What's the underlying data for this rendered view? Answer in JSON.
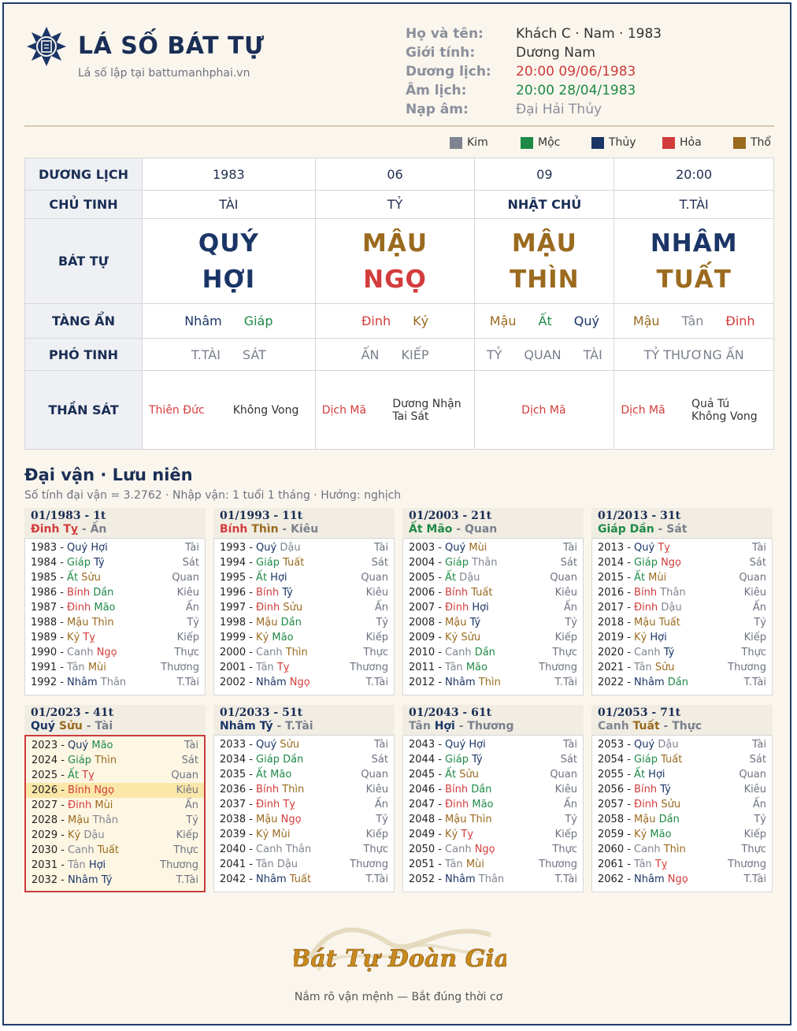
{
  "header": {
    "title": "LÁ SỐ BÁT TỰ",
    "subtitle": "Lá số lập tại battumanhphai.vn",
    "info": [
      {
        "key": "Họ và tên:",
        "value": "Khách C · Nam · 1983",
        "color": "#333333"
      },
      {
        "key": "Giới tính:",
        "value": "Dương Nam",
        "color": "#333333"
      },
      {
        "key": "Dương lịch:",
        "value": "20:00 09/06/1983",
        "color": "#cc3b3b"
      },
      {
        "key": "Âm lịch:",
        "value": "20:00 28/04/1983",
        "color": "#1e8a46"
      },
      {
        "key": "Nạp âm:",
        "value": "Đại Hải Thủy",
        "color": "#8a8f9c"
      }
    ]
  },
  "legend": [
    {
      "label": "Kim",
      "color": "#7f8590"
    },
    {
      "label": "Mộc",
      "color": "#1e8a46"
    },
    {
      "label": "Thủy",
      "color": "#1a3566"
    },
    {
      "label": "Hỏa",
      "color": "#d23c3c"
    },
    {
      "label": "Thổ",
      "color": "#9a6a1e"
    }
  ],
  "colors": {
    "kim": "#7f8590",
    "moc": "#1e8a46",
    "thuy": "#1a3566",
    "hoa": "#d23c3c",
    "tho": "#9a6a1e"
  },
  "table": {
    "labels": {
      "duong_lich": "DƯƠNG LỊCH",
      "chu_tinh": "CHỦ TINH",
      "bat_tu": "BÁT TỰ",
      "tang_an": "TÀNG ẨN",
      "pho_tinh": "PHÓ TINH",
      "than_sat": "THẦN SÁT"
    },
    "duong_lich": [
      "1983",
      "06",
      "09",
      "20:00"
    ],
    "chu_tinh": [
      "TÀI",
      "TỶ",
      "NHẬT CHỦ",
      "T.TÀI"
    ],
    "bat_tu": [
      {
        "can": "QUÝ",
        "can_el": "thuy",
        "chi": "HỢI",
        "chi_el": "thuy"
      },
      {
        "can": "MẬU",
        "can_el": "tho",
        "chi": "NGỌ",
        "chi_el": "hoa"
      },
      {
        "can": "MẬU",
        "can_el": "tho",
        "chi": "THÌN",
        "chi_el": "tho"
      },
      {
        "can": "NHÂM",
        "can_el": "thuy",
        "chi": "TUẤT",
        "chi_el": "tho"
      }
    ],
    "tang_an": [
      [
        {
          "t": "Nhâm",
          "el": "thuy"
        },
        {
          "t": "Giáp",
          "el": "moc"
        }
      ],
      [
        {
          "t": "Đinh",
          "el": "hoa"
        },
        {
          "t": "Kỷ",
          "el": "tho"
        }
      ],
      [
        {
          "t": "Mậu",
          "el": "tho"
        },
        {
          "t": "Ất",
          "el": "moc"
        },
        {
          "t": "Quý",
          "el": "thuy"
        }
      ],
      [
        {
          "t": "Mậu",
          "el": "tho"
        },
        {
          "t": "Tân",
          "el": "kim"
        },
        {
          "t": "Đinh",
          "el": "hoa"
        }
      ]
    ],
    "pho_tinh": [
      [
        "T.TÀI",
        "SÁT"
      ],
      [
        "ẤN",
        "KIẾP"
      ],
      [
        "TỶ",
        "QUAN",
        "TÀI"
      ],
      [
        "TỶ THƯƠNG ẤN"
      ]
    ],
    "than_sat": [
      {
        "left": "Thiên Đức",
        "right": "Không Vong"
      },
      {
        "left": "Dịch Mã",
        "right": "Dương Nhận\nTai Sát"
      },
      {
        "left": "Dịch Mã",
        "right": ""
      },
      {
        "left": "Dịch Mã",
        "right": "Quả Tú\nKhông Vong"
      }
    ]
  },
  "section": {
    "title": "Đại vận · Lưu niên",
    "subtitle": "Số tính đại vận = 3.2762 · Nhập vận: 1 tuổi 1 tháng · Hướng: nghịch"
  },
  "dai_van": [
    {
      "head": "01/1983 - 1t",
      "can": "Đinh",
      "can_el": "hoa",
      "chi": "Tỵ",
      "chi_el": "hoa",
      "god": "Ấn",
      "start": 1983,
      "gi": 3,
      "zi": 5
    },
    {
      "head": "01/1993 - 11t",
      "can": "Bính",
      "can_el": "hoa",
      "chi": "Thìn",
      "chi_el": "tho",
      "god": "Kiêu",
      "start": 1993,
      "gi": 3,
      "zi": 3
    },
    {
      "head": "01/2003 - 21t",
      "can": "Ất",
      "can_el": "moc",
      "chi": "Mão",
      "chi_el": "moc",
      "god": "Quan",
      "start": 2003,
      "gi": 3,
      "zi": 1
    },
    {
      "head": "01/2013 - 31t",
      "can": "Giáp",
      "can_el": "moc",
      "chi": "Dần",
      "chi_el": "moc",
      "god": "Sát",
      "start": 2013,
      "gi": 3,
      "zi": 11
    },
    {
      "head": "01/2023 - 41t",
      "can": "Quý",
      "can_el": "thuy",
      "chi": "Sửu",
      "chi_el": "tho",
      "god": "Tài",
      "start": 2023,
      "gi": 3,
      "zi": 9,
      "highlight": true,
      "current": 2026
    },
    {
      "head": "01/2033 - 51t",
      "can": "Nhâm",
      "can_el": "thuy",
      "chi": "Tý",
      "chi_el": "thuy",
      "god": "T.Tài",
      "start": 2033,
      "gi": 3,
      "zi": 7
    },
    {
      "head": "01/2043 - 61t",
      "can": "Tân",
      "can_el": "kim",
      "chi": "Hợi",
      "chi_el": "thuy",
      "god": "Thương",
      "start": 2043,
      "gi": 3,
      "zi": 5
    },
    {
      "head": "01/2053 - 71t",
      "can": "Canh",
      "can_el": "kim",
      "chi": "Tuất",
      "chi_el": "tho",
      "god": "Thực",
      "start": 2053,
      "gi": 3,
      "zi": 3
    }
  ],
  "stems": [
    {
      "t": "Canh",
      "el": "kim"
    },
    {
      "t": "Tân",
      "el": "kim"
    },
    {
      "t": "Nhâm",
      "el": "thuy"
    },
    {
      "t": "Quý",
      "el": "thuy"
    },
    {
      "t": "Giáp",
      "el": "moc"
    },
    {
      "t": "Ất",
      "el": "moc"
    },
    {
      "t": "Bính",
      "el": "hoa"
    },
    {
      "t": "Đinh",
      "el": "hoa"
    },
    {
      "t": "Mậu",
      "el": "tho"
    },
    {
      "t": "Kỷ",
      "el": "tho"
    }
  ],
  "branches": [
    {
      "t": "Thân",
      "el": "kim"
    },
    {
      "t": "Dậu",
      "el": "kim"
    },
    {
      "t": "Tuất",
      "el": "tho"
    },
    {
      "t": "Hợi",
      "el": "thuy"
    },
    {
      "t": "Tý",
      "el": "thuy"
    },
    {
      "t": "Sửu",
      "el": "tho"
    },
    {
      "t": "Dần",
      "el": "moc"
    },
    {
      "t": "Mão",
      "el": "moc"
    },
    {
      "t": "Thìn",
      "el": "tho"
    },
    {
      "t": "Tỵ",
      "el": "hoa"
    },
    {
      "t": "Ngọ",
      "el": "hoa"
    },
    {
      "t": "Mùi",
      "el": "tho"
    }
  ],
  "year_gods": [
    "Thực",
    "Thương",
    "Tài",
    "Sát",
    "Quan",
    "Kiêu",
    "Ấn",
    "Tỷ",
    "Kiếp",
    "T.Tài"
  ],
  "year_gods_order_from_quy": [
    "Tài",
    "Sát",
    "Quan",
    "Kiêu",
    "Ấn",
    "Tỷ",
    "Kiếp",
    "Thực",
    "Thương",
    "T.Tài"
  ],
  "footer": {
    "brand": "Bát Tự Đoàn Gia",
    "tagline": "Nắm rõ vận mệnh — Bắt đúng thời cơ"
  }
}
